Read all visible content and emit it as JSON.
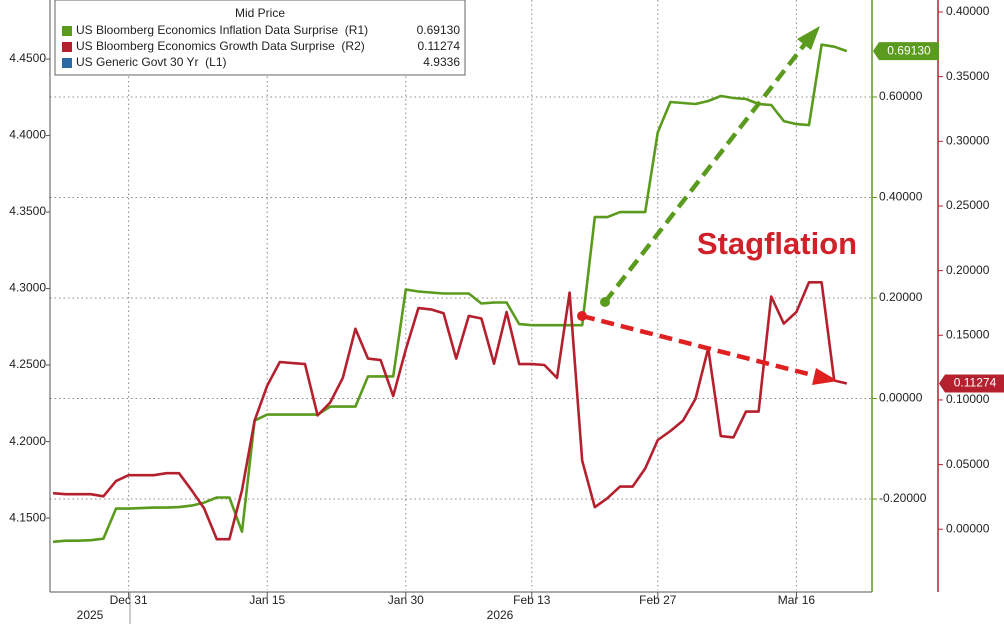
{
  "chart_data": {
    "type": "line",
    "legend_title": "Mid Price",
    "annotation": "Stagflation",
    "categories": [
      null,
      null,
      null,
      null,
      null,
      null,
      "Dec 31",
      null,
      null,
      null,
      null,
      null,
      null,
      null,
      null,
      null,
      null,
      "Jan 15",
      null,
      null,
      null,
      null,
      null,
      null,
      null,
      null,
      null,
      null,
      "Jan 30",
      null,
      null,
      null,
      null,
      null,
      null,
      null,
      null,
      null,
      "Feb 13",
      null,
      null,
      null,
      null,
      null,
      null,
      null,
      null,
      null,
      "Feb 27",
      null,
      null,
      null,
      null,
      null,
      null,
      null,
      null,
      null,
      null,
      "Mar 16",
      null,
      null,
      null,
      null
    ],
    "years": [
      "2025",
      "2026"
    ],
    "xlim": [
      -0.24,
      65
    ],
    "ylim": [
      4.103,
      4.4886
    ],
    "yticks": [
      {
        "value": 4.15,
        "label": "4.1500"
      },
      {
        "value": 4.2,
        "label": "4.2000"
      },
      {
        "value": 4.25,
        "label": "4.2500"
      },
      {
        "value": 4.3,
        "label": "4.3000"
      },
      {
        "value": 4.35,
        "label": "4.3500"
      },
      {
        "value": 4.4,
        "label": "4.4000"
      },
      {
        "value": 4.45,
        "label": "4.4500"
      }
    ],
    "y2lim": [
      -0.381,
      0.793
    ],
    "y2ticks": [
      {
        "value": -0.2,
        "label": "-0.20000"
      },
      {
        "value": 0,
        "label": "0.00000"
      },
      {
        "value": 0.2,
        "label": "0.20000"
      },
      {
        "value": 0.4,
        "label": "0.40000"
      },
      {
        "value": 0.6,
        "label": "0.60000"
      }
    ],
    "y3lim": [
      -0.047,
      0.4093
    ],
    "y3ticks": [
      {
        "value": 0,
        "label": "0.00000"
      },
      {
        "value": 0.05,
        "label": "0.05000"
      },
      {
        "value": 0.1,
        "label": "0.10000"
      },
      {
        "value": 0.15,
        "label": "0.15000"
      },
      {
        "value": 0.2,
        "label": "0.20000"
      },
      {
        "value": 0.25,
        "label": "0.25000"
      },
      {
        "value": 0.3,
        "label": "0.30000"
      },
      {
        "value": 0.35,
        "label": "0.35000"
      },
      {
        "value": 0.4,
        "label": "0.40000"
      }
    ],
    "grid": true,
    "series": [
      {
        "name": "US Bloomberg Economics Inflation Data Surprise  (R1)",
        "color": "#5a9a1c",
        "axis": "y2",
        "last_value_label": "0.69130",
        "values": [
          -0.285,
          -0.283,
          -0.283,
          -0.282,
          -0.279,
          -0.219,
          -0.219,
          -0.218,
          -0.217,
          -0.217,
          -0.216,
          -0.213,
          -0.207,
          -0.197,
          -0.197,
          -0.265,
          -0.044,
          -0.032,
          -0.032,
          -0.032,
          -0.032,
          -0.032,
          -0.016,
          -0.016,
          -0.016,
          0.044,
          0.044,
          0.044,
          0.217,
          0.213,
          0.211,
          0.209,
          0.209,
          0.209,
          0.189,
          0.191,
          0.191,
          0.148,
          0.146,
          0.146,
          0.146,
          0.146,
          0.146,
          0.361,
          0.361,
          0.371,
          0.371,
          0.371,
          0.53,
          0.59,
          0.588,
          0.586,
          0.592,
          0.602,
          0.598,
          0.596,
          0.586,
          0.584,
          0.552,
          0.546,
          0.544,
          0.704,
          0.7,
          0.6913
        ]
      },
      {
        "name": "US Bloomberg Economics Growth Data Surprise  (R2)",
        "color": "#b5202e",
        "axis": "y3",
        "last_value_label": "0.11274",
        "values": [
          0.0279,
          0.0271,
          0.0271,
          0.0271,
          0.0255,
          0.0372,
          0.0418,
          0.0418,
          0.0418,
          0.0433,
          0.0433,
          0.0302,
          0.016,
          -0.0077,
          -0.0077,
          0.0302,
          0.084,
          0.111,
          0.1293,
          0.1285,
          0.1277,
          0.088,
          0.098,
          0.117,
          0.155,
          0.132,
          0.1308,
          0.103,
          0.139,
          0.171,
          0.17,
          0.167,
          0.132,
          0.165,
          0.163,
          0.128,
          0.168,
          0.1277,
          0.1277,
          0.127,
          0.117,
          0.183,
          0.053,
          0.017,
          0.024,
          0.033,
          0.033,
          0.047,
          0.069,
          0.076,
          0.084,
          0.101,
          0.14,
          0.072,
          0.071,
          0.091,
          0.091,
          0.18,
          0.159,
          0.168,
          0.191,
          0.191,
          0.115,
          0.11274
        ]
      },
      {
        "name": "US Generic Govt 30 Yr  (L1)",
        "color": "#2c6aa6",
        "axis": "y",
        "last_value_label": "4.9336"
      }
    ]
  }
}
